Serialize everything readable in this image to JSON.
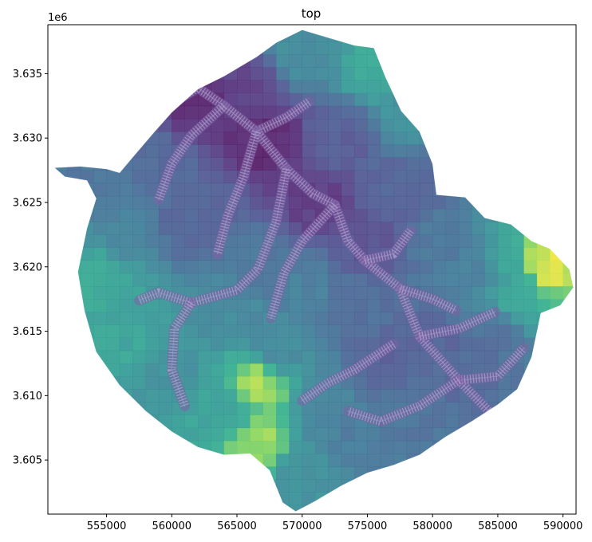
{
  "chart_data": {
    "type": "heatmap",
    "title": "top",
    "xlabel": "",
    "ylabel": "",
    "y_offset_label": "1e6",
    "xlim": [
      550500,
      591000
    ],
    "ylim": [
      3600800,
      3638800
    ],
    "x_ticks": [
      555000,
      560000,
      565000,
      570000,
      575000,
      580000,
      585000,
      590000
    ],
    "x_tick_labels": [
      "555000",
      "560000",
      "565000",
      "570000",
      "575000",
      "580000",
      "585000",
      "590000"
    ],
    "y_ticks": [
      3605000,
      3610000,
      3615000,
      3620000,
      3625000,
      3630000,
      3635000
    ],
    "y_tick_labels": [
      "3.605",
      "3.610",
      "3.615",
      "3.620",
      "3.625",
      "3.630",
      "3.635"
    ],
    "colormap": "viridis",
    "grid": false,
    "legend": "none",
    "value_range": [
      0,
      1
    ],
    "boundary": [
      [
        551000,
        3627700
      ],
      [
        553000,
        3627800
      ],
      [
        555000,
        3627600
      ],
      [
        556000,
        3627300
      ],
      [
        557000,
        3628500
      ],
      [
        558600,
        3630400
      ],
      [
        560000,
        3632000
      ],
      [
        562000,
        3633800
      ],
      [
        564000,
        3634800
      ],
      [
        566500,
        3636300
      ],
      [
        568000,
        3637400
      ],
      [
        570000,
        3638400
      ],
      [
        572000,
        3637800
      ],
      [
        574000,
        3637200
      ],
      [
        575500,
        3637000
      ],
      [
        576400,
        3634700
      ],
      [
        577600,
        3632100
      ],
      [
        579000,
        3630500
      ],
      [
        580000,
        3628000
      ],
      [
        580300,
        3625600
      ],
      [
        582500,
        3625400
      ],
      [
        584000,
        3623800
      ],
      [
        586000,
        3623300
      ],
      [
        587600,
        3622000
      ],
      [
        589000,
        3621400
      ],
      [
        590500,
        3619800
      ],
      [
        590800,
        3618400
      ],
      [
        589800,
        3617000
      ],
      [
        588300,
        3616400
      ],
      [
        587600,
        3613000
      ],
      [
        586500,
        3610500
      ],
      [
        585000,
        3609300
      ],
      [
        583000,
        3608000
      ],
      [
        581000,
        3606800
      ],
      [
        579000,
        3605400
      ],
      [
        577000,
        3604600
      ],
      [
        575000,
        3604000
      ],
      [
        573000,
        3603000
      ],
      [
        571000,
        3601800
      ],
      [
        569500,
        3601000
      ],
      [
        568500,
        3601700
      ],
      [
        567500,
        3604200
      ],
      [
        566000,
        3605500
      ],
      [
        564000,
        3605400
      ],
      [
        562000,
        3606000
      ],
      [
        560000,
        3607200
      ],
      [
        558000,
        3608800
      ],
      [
        556000,
        3610800
      ],
      [
        554200,
        3613400
      ],
      [
        553300,
        3616600
      ],
      [
        552800,
        3619600
      ],
      [
        553500,
        3623000
      ],
      [
        554200,
        3625300
      ],
      [
        553500,
        3626700
      ],
      [
        551800,
        3627000
      ],
      [
        551000,
        3627700
      ]
    ],
    "anchors": [
      [
        562000,
        3633000,
        0.05
      ],
      [
        567000,
        3630000,
        0.03
      ],
      [
        566000,
        3634000,
        0.15
      ],
      [
        571000,
        3625000,
        0.12
      ],
      [
        575500,
        3622000,
        0.22
      ],
      [
        573000,
        3630000,
        0.26
      ],
      [
        575500,
        3635500,
        0.68
      ],
      [
        570000,
        3636500,
        0.52
      ],
      [
        580500,
        3622000,
        0.4
      ],
      [
        583500,
        3619500,
        0.45
      ],
      [
        585500,
        3620000,
        0.64
      ],
      [
        588700,
        3620300,
        0.96
      ],
      [
        586500,
        3617800,
        0.7
      ],
      [
        584500,
        3614500,
        0.36
      ],
      [
        580000,
        3614000,
        0.3
      ],
      [
        577000,
        3613000,
        0.28
      ],
      [
        580000,
        3609000,
        0.38
      ],
      [
        575000,
        3606500,
        0.42
      ],
      [
        572000,
        3608500,
        0.45
      ],
      [
        570000,
        3604000,
        0.55
      ],
      [
        566700,
        3611000,
        0.9
      ],
      [
        566800,
        3606300,
        0.88
      ],
      [
        564000,
        3609000,
        0.66
      ],
      [
        560000,
        3611500,
        0.55
      ],
      [
        556000,
        3614500,
        0.66
      ],
      [
        554500,
        3619000,
        0.7
      ],
      [
        556500,
        3623000,
        0.46
      ],
      [
        553000,
        3627500,
        0.4
      ],
      [
        559000,
        3627500,
        0.33
      ],
      [
        564500,
        3616500,
        0.5
      ],
      [
        568000,
        3613500,
        0.5
      ],
      [
        567000,
        3620000,
        0.4
      ],
      [
        561500,
        3624000,
        0.3
      ],
      [
        570000,
        3618000,
        0.45
      ],
      [
        574500,
        3616500,
        0.35
      ],
      [
        578000,
        3626000,
        0.3
      ],
      [
        578000,
        3632000,
        0.55
      ],
      [
        582000,
        3611000,
        0.32
      ]
    ],
    "streams": [
      [
        [
          560500,
          3633000
        ],
        [
          562000,
          3633900
        ],
        [
          564000,
          3632500
        ],
        [
          566500,
          3630500
        ],
        [
          568800,
          3631600
        ],
        [
          570500,
          3632800
        ]
      ],
      [
        [
          566500,
          3630500
        ],
        [
          568800,
          3627600
        ],
        [
          570800,
          3625700
        ],
        [
          572500,
          3624800
        ]
      ],
      [
        [
          572500,
          3624800
        ],
        [
          573500,
          3622000
        ],
        [
          574800,
          3620500
        ],
        [
          577500,
          3618300
        ],
        [
          579000,
          3614600
        ],
        [
          582000,
          3611200
        ],
        [
          584500,
          3608600
        ]
      ],
      [
        [
          574800,
          3620500
        ],
        [
          577000,
          3621000
        ],
        [
          578300,
          3622800
        ]
      ],
      [
        [
          577500,
          3618300
        ],
        [
          580000,
          3617500
        ],
        [
          581800,
          3616600
        ]
      ],
      [
        [
          579000,
          3614600
        ],
        [
          582000,
          3615200
        ],
        [
          584800,
          3616500
        ]
      ],
      [
        [
          582000,
          3611200
        ],
        [
          585000,
          3611500
        ],
        [
          587000,
          3613700
        ]
      ],
      [
        [
          566500,
          3630500
        ],
        [
          565500,
          3627000
        ],
        [
          564300,
          3624000
        ],
        [
          563500,
          3621000
        ]
      ],
      [
        [
          568800,
          3627600
        ],
        [
          568000,
          3623500
        ],
        [
          566600,
          3619800
        ],
        [
          565000,
          3618200
        ],
        [
          561500,
          3617200
        ],
        [
          559000,
          3618000
        ],
        [
          557500,
          3617400
        ]
      ],
      [
        [
          561500,
          3617200
        ],
        [
          560200,
          3615200
        ],
        [
          560000,
          3612000
        ],
        [
          561000,
          3609200
        ]
      ],
      [
        [
          572500,
          3624800
        ],
        [
          570000,
          3622000
        ],
        [
          568600,
          3619500
        ],
        [
          567600,
          3616000
        ]
      ],
      [
        [
          577000,
          3614000
        ],
        [
          574000,
          3612000
        ],
        [
          572000,
          3611000
        ],
        [
          570000,
          3609600
        ]
      ],
      [
        [
          582000,
          3611200
        ],
        [
          579000,
          3609200
        ],
        [
          576000,
          3608000
        ],
        [
          573500,
          3608800
        ]
      ],
      [
        [
          564000,
          3632500
        ],
        [
          561500,
          3630200
        ],
        [
          560000,
          3628000
        ],
        [
          559000,
          3625200
        ]
      ]
    ]
  }
}
